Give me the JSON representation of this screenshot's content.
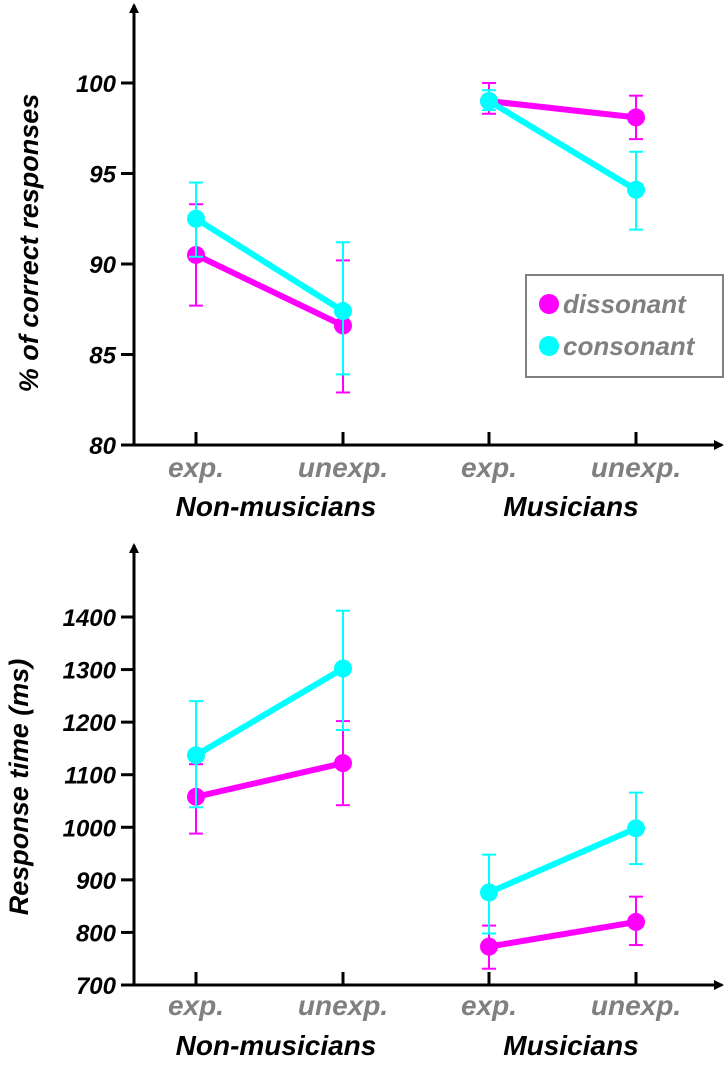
{
  "colors": {
    "dissonant": "#ff00ff",
    "consonant": "#00ffff",
    "axis": "#000000",
    "condition_label": "#808080"
  },
  "chart_data": [
    {
      "type": "line",
      "ylabel": "% of correct responses",
      "ylim": [
        80,
        100
      ],
      "yticks": [
        "80",
        "85",
        "90",
        "95",
        "100"
      ],
      "x_conditions": [
        "exp.",
        "unexp.",
        "exp.",
        "unexp."
      ],
      "groups": [
        "Non-musicians",
        "Musicians"
      ],
      "legend": {
        "position": "right",
        "entries": [
          "dissonant",
          "consonant"
        ]
      },
      "series": [
        {
          "name": "dissonant",
          "color": "#ff00ff",
          "values": [
            90.5,
            86.6,
            99.0,
            98.1
          ],
          "err_low": [
            87.7,
            82.9,
            98.3,
            96.9
          ],
          "err_high": [
            93.3,
            90.2,
            100.0,
            99.3
          ]
        },
        {
          "name": "consonant",
          "color": "#00ffff",
          "values": [
            92.5,
            87.4,
            99.0,
            94.1
          ],
          "err_low": [
            90.4,
            83.9,
            98.5,
            91.9
          ],
          "err_high": [
            94.5,
            91.2,
            99.6,
            96.2
          ]
        }
      ]
    },
    {
      "type": "line",
      "ylabel": "Response time (ms)",
      "ylim": [
        700,
        1500
      ],
      "yticks": [
        "700",
        "800",
        "900",
        "1000",
        "1100",
        "1200",
        "1300",
        "1400"
      ],
      "x_conditions": [
        "exp.",
        "unexp.",
        "exp.",
        "unexp."
      ],
      "groups": [
        "Non-musicians",
        "Musicians"
      ],
      "series": [
        {
          "name": "dissonant",
          "color": "#ff00ff",
          "values": [
            1058,
            1122,
            773,
            820
          ],
          "err_low": [
            988,
            1042,
            731,
            776
          ],
          "err_high": [
            1120,
            1202,
            813,
            868
          ]
        },
        {
          "name": "consonant",
          "color": "#00ffff",
          "values": [
            1137,
            1302,
            876,
            998
          ],
          "err_low": [
            1038,
            1185,
            798,
            930
          ],
          "err_high": [
            1240,
            1412,
            948,
            1066
          ]
        }
      ]
    }
  ]
}
